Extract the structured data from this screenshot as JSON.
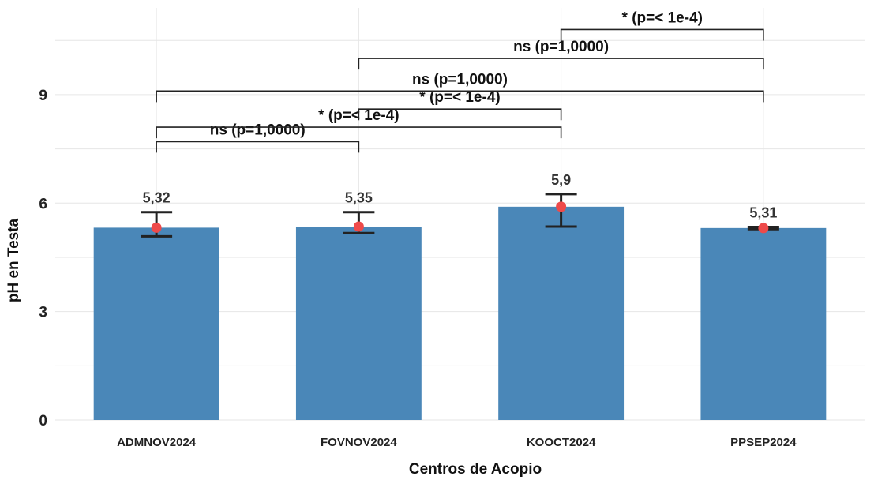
{
  "chart_data": {
    "type": "bar",
    "xlabel": "Centros de Acopio",
    "ylabel": "pH en Testa",
    "categories": [
      "ADMNOV2024",
      "FOVNOV2024",
      "KOOCT2024",
      "PPSEP2024"
    ],
    "values": [
      5.32,
      5.35,
      5.9,
      5.31
    ],
    "value_labels": [
      "5,32",
      "5,35",
      "5,9",
      "5,31"
    ],
    "error_low": [
      5.08,
      5.17,
      5.35,
      5.28
    ],
    "error_high": [
      5.75,
      5.75,
      6.25,
      5.34
    ],
    "yticks": [
      0,
      3,
      6,
      9
    ],
    "ylim": [
      0,
      11.4
    ],
    "grid": true,
    "bar_color": "#4a87b8",
    "point_color": "#ee4a4a",
    "comparisons": [
      {
        "from": 0,
        "to": 1,
        "y": 7.7,
        "label": "ns (p=1,0000)"
      },
      {
        "from": 0,
        "to": 2,
        "y": 8.1,
        "label": "* (p=< 1e-4)"
      },
      {
        "from": 1,
        "to": 2,
        "y": 8.6,
        "label": "* (p=< 1e-4)"
      },
      {
        "from": 0,
        "to": 3,
        "y": 9.1,
        "label": "ns (p=1,0000)"
      },
      {
        "from": 1,
        "to": 3,
        "y": 10.0,
        "label": "ns (p=1,0000)"
      },
      {
        "from": 2,
        "to": 3,
        "y": 10.8,
        "label": "* (p=< 1e-4)"
      }
    ]
  }
}
